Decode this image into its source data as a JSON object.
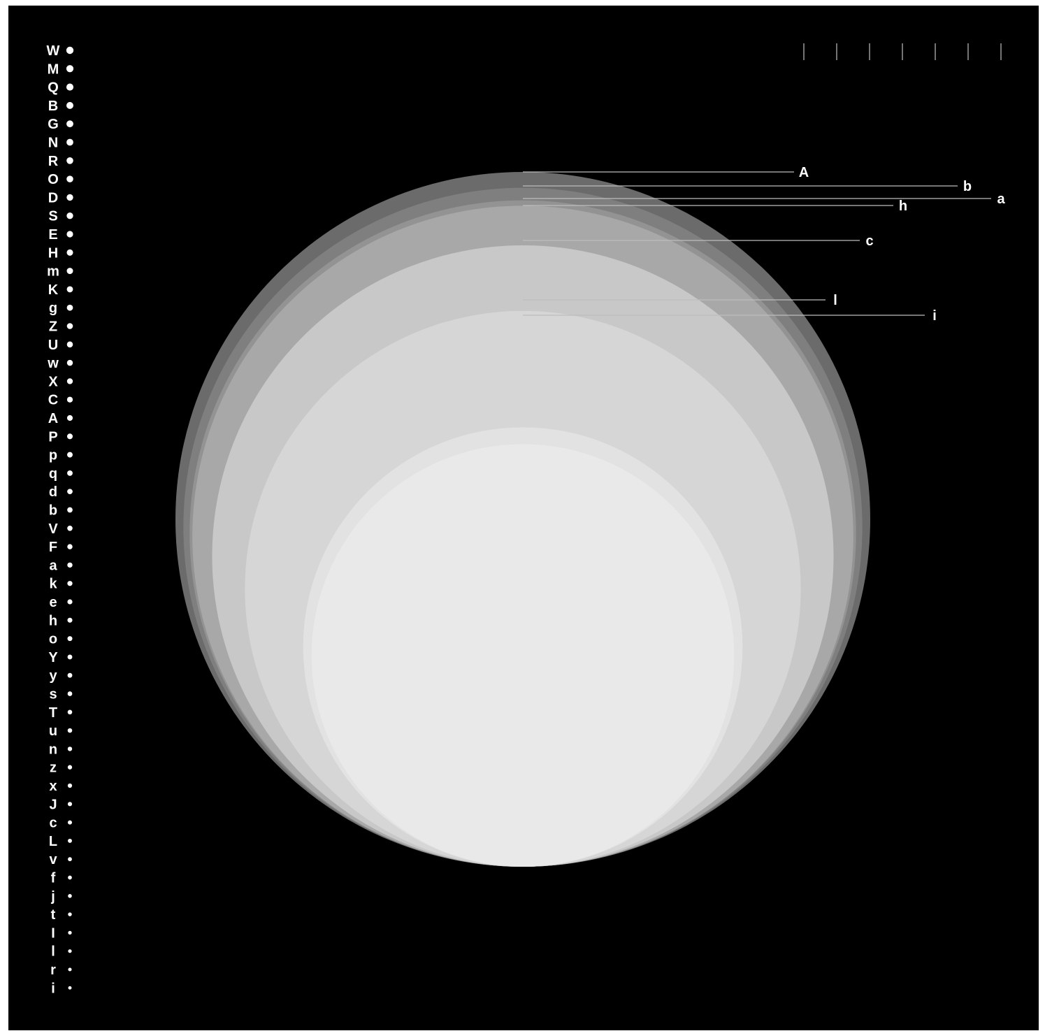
{
  "chart_data": {
    "type": "area",
    "title": "",
    "xlabel": "",
    "ylabel": "",
    "grid": false,
    "legend_position": "left",
    "description_of_marks": "concentric circles, one per legend letter, area encoding value",
    "legend": [
      {
        "name": "W",
        "value": 100
      },
      {
        "name": "M",
        "value": 95
      },
      {
        "name": "Q",
        "value": 91
      },
      {
        "name": "B",
        "value": 87
      },
      {
        "name": "G",
        "value": 83
      },
      {
        "name": "N",
        "value": 80
      },
      {
        "name": "R",
        "value": 77
      },
      {
        "name": "O",
        "value": 74
      },
      {
        "name": "D",
        "value": 71
      },
      {
        "name": "S",
        "value": 68
      },
      {
        "name": "E",
        "value": 65
      },
      {
        "name": "H",
        "value": 62
      },
      {
        "name": "m",
        "value": 60
      },
      {
        "name": "K",
        "value": 57
      },
      {
        "name": "g",
        "value": 55
      },
      {
        "name": "Z",
        "value": 52
      },
      {
        "name": "U",
        "value": 50
      },
      {
        "name": "w",
        "value": 48
      },
      {
        "name": "X",
        "value": 46
      },
      {
        "name": "C",
        "value": 44
      },
      {
        "name": "A",
        "value": 42
      },
      {
        "name": "P",
        "value": 40
      },
      {
        "name": "p",
        "value": 38
      },
      {
        "name": "q",
        "value": 36
      },
      {
        "name": "d",
        "value": 34
      },
      {
        "name": "b",
        "value": 33
      },
      {
        "name": "V",
        "value": 31
      },
      {
        "name": "F",
        "value": 29
      },
      {
        "name": "a",
        "value": 28
      },
      {
        "name": "k",
        "value": 26
      },
      {
        "name": "e",
        "value": 25
      },
      {
        "name": "h",
        "value": 23
      },
      {
        "name": "o",
        "value": 22
      },
      {
        "name": "Y",
        "value": 20
      },
      {
        "name": "y",
        "value": 19
      },
      {
        "name": "s",
        "value": 18
      },
      {
        "name": "T",
        "value": 16
      },
      {
        "name": "u",
        "value": 15
      },
      {
        "name": "n",
        "value": 14
      },
      {
        "name": "z",
        "value": 13
      },
      {
        "name": "x",
        "value": 12
      },
      {
        "name": "J",
        "value": 11
      },
      {
        "name": "c",
        "value": 10
      },
      {
        "name": "L",
        "value": 9
      },
      {
        "name": "v",
        "value": 8
      },
      {
        "name": "f",
        "value": 7
      },
      {
        "name": "j",
        "value": 6
      },
      {
        "name": "t",
        "value": 5
      },
      {
        "name": "I",
        "value": 4
      },
      {
        "name": "l",
        "value": 3.5
      },
      {
        "name": "r",
        "value": 3
      },
      {
        "name": "i",
        "value": 2
      }
    ],
    "circles": [
      {
        "name": "A",
        "value": 100,
        "color": "#6b6b6b",
        "label_shown": true
      },
      {
        "name": "b",
        "value": 95.5,
        "color": "#7f7f7f",
        "label_shown": true
      },
      {
        "name": "a",
        "value": 92,
        "color": "#939393",
        "label_shown": true
      },
      {
        "name": "h",
        "value": 90.5,
        "color": "#a8a8a8",
        "label_shown": true
      },
      {
        "name": "c",
        "value": 80,
        "color": "#c8c8c8",
        "label_shown": true
      },
      {
        "name": "l",
        "value": 64,
        "color": "#d6d6d6",
        "label_shown": true
      },
      {
        "name": "i",
        "value": 40,
        "color": "#e2e2e2",
        "label_shown": true
      },
      {
        "name": "",
        "value": 37,
        "color": "#e9e9e9",
        "label_shown": false
      }
    ],
    "top_ticks_count": 7
  }
}
